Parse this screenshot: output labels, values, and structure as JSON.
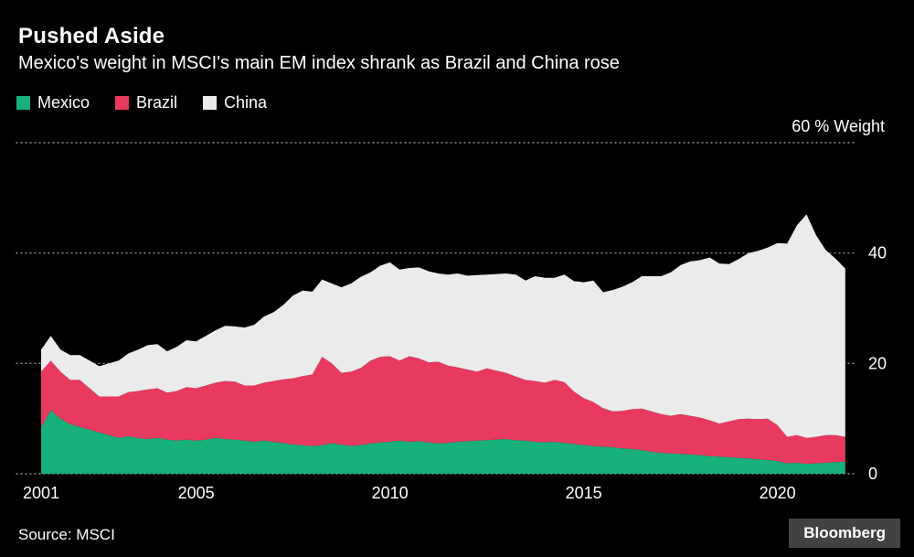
{
  "header": {
    "title": "Pushed Aside",
    "subtitle": "Mexico's weight in MSCI's main EM index shrank as Brazil and China rose"
  },
  "legend": [
    {
      "label": "Mexico",
      "color": "#17b07a"
    },
    {
      "label": "Brazil",
      "color": "#e8395f"
    },
    {
      "label": "China",
      "color": "#ebebeb"
    }
  ],
  "footer": {
    "source": "Source: MSCI",
    "brand": "Bloomberg"
  },
  "colors": {
    "background": "#000000",
    "text": "#ffffff",
    "gridline": "#8a8a8a"
  },
  "chart_data": {
    "type": "area",
    "stacked": true,
    "title": "Pushed Aside",
    "subtitle": "Mexico's weight in MSCI's main EM index shrank as Brazil and China rose",
    "ylabel": "% Weight",
    "ylim": [
      0,
      60
    ],
    "yticks": [
      0,
      20,
      40,
      60
    ],
    "ytick_labels": [
      "0",
      "20",
      "40",
      "60 % Weight"
    ],
    "xticks": [
      2001,
      2005,
      2010,
      2015,
      2020
    ],
    "grid": "dotted-horizontal",
    "legend_position": "top-left",
    "x": [
      2001,
      2001.25,
      2001.5,
      2001.75,
      2002,
      2002.25,
      2002.5,
      2002.75,
      2003,
      2003.25,
      2003.5,
      2003.75,
      2004,
      2004.25,
      2004.5,
      2004.75,
      2005,
      2005.25,
      2005.5,
      2005.75,
      2006,
      2006.25,
      2006.5,
      2006.75,
      2007,
      2007.25,
      2007.5,
      2007.75,
      2008,
      2008.25,
      2008.5,
      2008.75,
      2009,
      2009.25,
      2009.5,
      2009.75,
      2010,
      2010.25,
      2010.5,
      2010.75,
      2011,
      2011.25,
      2011.5,
      2011.75,
      2012,
      2012.25,
      2012.5,
      2012.75,
      2013,
      2013.25,
      2013.5,
      2013.75,
      2014,
      2014.25,
      2014.5,
      2014.75,
      2015,
      2015.25,
      2015.5,
      2015.75,
      2016,
      2016.25,
      2016.5,
      2016.75,
      2017,
      2017.25,
      2017.5,
      2017.75,
      2018,
      2018.25,
      2018.5,
      2018.75,
      2019,
      2019.25,
      2019.5,
      2019.75,
      2020,
      2020.25,
      2020.5,
      2020.75,
      2021,
      2021.25,
      2021.5,
      2021.75
    ],
    "series": [
      {
        "name": "Mexico",
        "color": "#17b07a",
        "values": [
          8.5,
          11.5,
          10.0,
          9.0,
          8.5,
          8.0,
          7.5,
          7.0,
          6.5,
          6.8,
          6.5,
          6.3,
          6.5,
          6.2,
          6.0,
          6.2,
          6.0,
          6.2,
          6.5,
          6.3,
          6.2,
          6.0,
          5.8,
          6.0,
          5.8,
          5.6,
          5.3,
          5.2,
          5.0,
          5.2,
          5.5,
          5.3,
          5.0,
          5.2,
          5.5,
          5.7,
          5.8,
          6.0,
          5.8,
          5.9,
          5.7,
          5.5,
          5.6,
          5.8,
          5.9,
          6.0,
          6.1,
          6.2,
          6.3,
          6.1,
          6.0,
          5.8,
          5.7,
          5.8,
          5.6,
          5.4,
          5.2,
          5.0,
          4.9,
          4.8,
          4.6,
          4.5,
          4.3,
          4.0,
          3.8,
          3.7,
          3.6,
          3.5,
          3.4,
          3.2,
          3.1,
          3.0,
          2.9,
          2.8,
          2.6,
          2.5,
          2.3,
          1.9,
          2.0,
          1.8,
          1.9,
          2.0,
          2.1,
          2.2
        ]
      },
      {
        "name": "Brazil",
        "color": "#e8395f",
        "values": [
          10.0,
          9.0,
          8.5,
          8.0,
          8.5,
          7.5,
          6.5,
          7.0,
          7.5,
          8.0,
          8.5,
          9.0,
          9.0,
          8.5,
          9.0,
          9.5,
          9.5,
          9.8,
          10.0,
          10.5,
          10.5,
          10.0,
          10.2,
          10.5,
          11.0,
          11.5,
          12.0,
          12.5,
          13.0,
          16.0,
          14.5,
          13.0,
          13.5,
          14.0,
          15.0,
          15.5,
          15.5,
          14.5,
          15.5,
          15.0,
          14.5,
          14.8,
          14.0,
          13.5,
          13.0,
          12.5,
          13.0,
          12.5,
          12.0,
          11.5,
          11.0,
          11.0,
          10.8,
          11.2,
          11.0,
          9.5,
          8.5,
          8.0,
          7.0,
          6.5,
          6.8,
          7.2,
          7.5,
          7.3,
          7.0,
          6.8,
          7.2,
          7.0,
          6.8,
          6.5,
          6.0,
          6.5,
          7.0,
          7.2,
          7.3,
          7.5,
          6.5,
          4.8,
          5.0,
          4.7,
          4.8,
          5.0,
          4.9,
          4.5
        ]
      },
      {
        "name": "China",
        "color": "#ebebeb",
        "values": [
          4.0,
          4.5,
          4.0,
          4.5,
          4.5,
          5.0,
          5.5,
          6.0,
          6.5,
          7.0,
          7.5,
          8.0,
          8.0,
          7.5,
          8.0,
          8.5,
          8.5,
          9.0,
          9.5,
          10.0,
          10.0,
          10.5,
          11.0,
          12.0,
          12.5,
          13.5,
          15.0,
          15.5,
          15.0,
          14.0,
          14.5,
          15.5,
          16.0,
          16.5,
          16.0,
          16.5,
          17.0,
          16.5,
          16.0,
          16.5,
          16.5,
          16.0,
          16.5,
          17.0,
          17.0,
          17.5,
          17.0,
          17.5,
          18.0,
          18.5,
          18.0,
          19.0,
          19.0,
          18.5,
          19.5,
          20.0,
          21.0,
          22.0,
          21.0,
          22.0,
          22.5,
          23.0,
          24.0,
          24.5,
          25.0,
          26.0,
          27.0,
          28.0,
          28.5,
          29.5,
          29.0,
          28.5,
          29.0,
          30.0,
          30.5,
          31.0,
          33.0,
          35.0,
          38.0,
          40.5,
          36.5,
          33.5,
          32.0,
          30.5
        ]
      }
    ]
  }
}
